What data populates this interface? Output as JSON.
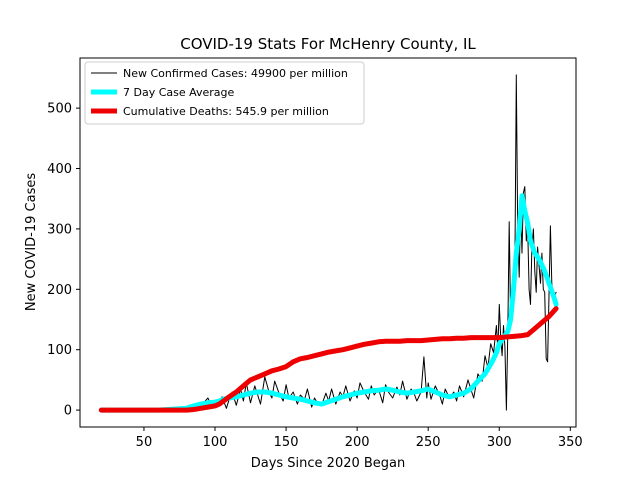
{
  "chart_data": {
    "type": "line",
    "title": "COVID-19 Stats For McHenry County, IL",
    "xlabel": "Days Since 2020 Began",
    "ylabel": "New COVID-19 Cases",
    "xlim": [
      5,
      354
    ],
    "ylim": [
      -28,
      583
    ],
    "xticks": [
      50,
      100,
      150,
      200,
      250,
      300,
      350
    ],
    "yticks": [
      0,
      100,
      200,
      300,
      400,
      500
    ],
    "grid": false,
    "legend_position": "top-left",
    "series": [
      {
        "name": "New Confirmed Cases: 49900 per million",
        "color": "#000000",
        "x": [
          20,
          40,
          60,
          75,
          80,
          85,
          88,
          90,
          92,
          95,
          98,
          100,
          102,
          105,
          108,
          110,
          112,
          115,
          118,
          120,
          122,
          125,
          128,
          130,
          132,
          135,
          138,
          140,
          142,
          145,
          148,
          150,
          152,
          155,
          158,
          160,
          163,
          165,
          168,
          170,
          172,
          175,
          178,
          180,
          182,
          185,
          188,
          190,
          192,
          195,
          198,
          200,
          202,
          205,
          208,
          210,
          212,
          215,
          218,
          220,
          222,
          225,
          228,
          230,
          232,
          235,
          238,
          240,
          242,
          245,
          247,
          249,
          250,
          252,
          255,
          258,
          260,
          262,
          265,
          268,
          270,
          272,
          275,
          278,
          280,
          282,
          285,
          288,
          290,
          292,
          294,
          296,
          298,
          299,
          300,
          301,
          302,
          303,
          304,
          305,
          306,
          307,
          308,
          309,
          310,
          311,
          312,
          313,
          314,
          315,
          316,
          317,
          318,
          319,
          320,
          321,
          322,
          323,
          324,
          325,
          326,
          327,
          328,
          329,
          330,
          331,
          332,
          333,
          334,
          335,
          336,
          337,
          338,
          340
        ],
        "y": [
          0,
          0,
          0,
          0,
          2,
          5,
          8,
          3,
          12,
          20,
          5,
          15,
          10,
          22,
          3,
          18,
          30,
          8,
          35,
          15,
          45,
          12,
          40,
          25,
          10,
          55,
          30,
          20,
          48,
          28,
          15,
          42,
          20,
          30,
          10,
          25,
          18,
          35,
          5,
          20,
          12,
          8,
          28,
          15,
          35,
          10,
          30,
          22,
          40,
          15,
          32,
          20,
          45,
          30,
          18,
          40,
          25,
          35,
          12,
          42,
          30,
          20,
          38,
          25,
          48,
          18,
          35,
          28,
          15,
          30,
          88,
          20,
          45,
          18,
          40,
          25,
          10,
          35,
          20,
          30,
          15,
          40,
          22,
          50,
          35,
          20,
          60,
          48,
          90,
          70,
          110,
          95,
          140,
          100,
          175,
          120,
          90,
          140,
          105,
          0,
          130,
          312,
          150,
          200,
          180,
          240,
          555,
          300,
          220,
          340,
          260,
          360,
          370,
          280,
          300,
          200,
          175,
          270,
          300,
          230,
          195,
          270,
          240,
          210,
          260,
          200,
          195,
          85,
          80,
          190,
          305,
          210,
          185,
          195
        ],
        "line_width": 1
      },
      {
        "name": "7 Day Case Average",
        "color": "#00ffff",
        "x": [
          20,
          60,
          80,
          85,
          90,
          95,
          100,
          103,
          106,
          110,
          115,
          120,
          125,
          130,
          135,
          140,
          145,
          150,
          155,
          160,
          165,
          170,
          175,
          180,
          185,
          190,
          195,
          200,
          205,
          210,
          215,
          220,
          225,
          230,
          235,
          240,
          245,
          250,
          255,
          260,
          265,
          270,
          275,
          280,
          285,
          290,
          295,
          298,
          300,
          303,
          306,
          308,
          310,
          312,
          314,
          316,
          318,
          320,
          322,
          325,
          328,
          330,
          332,
          335,
          338,
          340
        ],
        "y": [
          0,
          0,
          3,
          7,
          10,
          12,
          13,
          15,
          18,
          20,
          22,
          25,
          28,
          30,
          30,
          28,
          25,
          22,
          20,
          18,
          15,
          12,
          10,
          14,
          18,
          22,
          25,
          28,
          30,
          32,
          33,
          35,
          33,
          30,
          28,
          30,
          32,
          35,
          30,
          25,
          22,
          25,
          28,
          35,
          48,
          60,
          80,
          95,
          110,
          120,
          130,
          150,
          200,
          260,
          300,
          355,
          330,
          310,
          280,
          260,
          250,
          240,
          230,
          210,
          190,
          175
        ],
        "line_width": 5
      },
      {
        "name": "Cumulative Deaths: 545.9 per million",
        "color": "#ee0000",
        "x": [
          20,
          60,
          80,
          85,
          90,
          95,
          100,
          103,
          106,
          110,
          115,
          120,
          125,
          130,
          135,
          140,
          145,
          150,
          155,
          160,
          165,
          170,
          175,
          180,
          185,
          190,
          195,
          200,
          205,
          210,
          215,
          220,
          225,
          230,
          235,
          240,
          245,
          250,
          255,
          260,
          265,
          270,
          275,
          280,
          285,
          290,
          295,
          300,
          305,
          310,
          315,
          320,
          325,
          330,
          335,
          340
        ],
        "y": [
          0,
          0,
          0,
          1,
          3,
          5,
          7,
          10,
          15,
          22,
          30,
          40,
          50,
          55,
          60,
          65,
          68,
          72,
          80,
          85,
          87,
          90,
          93,
          96,
          98,
          100,
          103,
          106,
          109,
          111,
          113,
          114,
          114,
          114,
          115,
          115,
          115,
          116,
          117,
          118,
          118,
          119,
          119,
          120,
          120,
          120,
          120,
          120,
          121,
          122,
          123,
          125,
          135,
          145,
          155,
          168
        ],
        "line_width": 5
      }
    ]
  }
}
